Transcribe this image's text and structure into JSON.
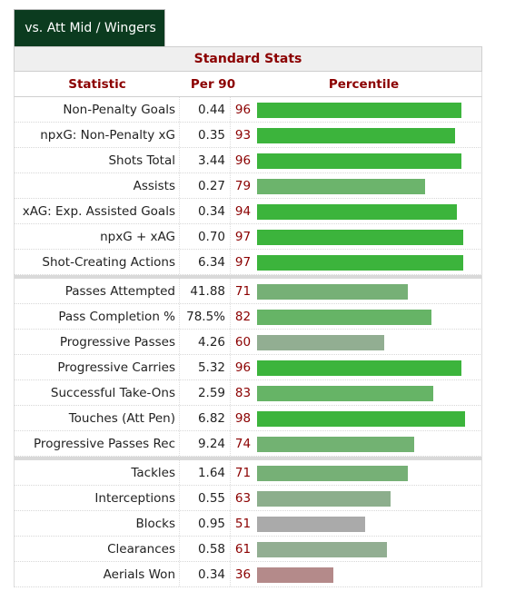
{
  "tab": {
    "label": "vs. Att Mid / Wingers"
  },
  "table": {
    "caption": "Standard Stats",
    "headers": {
      "statistic": "Statistic",
      "per90": "Per 90",
      "percentile": "Percentile"
    },
    "groups": [
      [
        {
          "stat": "Non-Penalty Goals",
          "per90": "0.44",
          "pct": "96",
          "pct_value": 96,
          "color": "#3cb43c"
        },
        {
          "stat": "npxG: Non-Penalty xG",
          "per90": "0.35",
          "pct": "93",
          "pct_value": 93,
          "color": "#3cb43c"
        },
        {
          "stat": "Shots Total",
          "per90": "3.44",
          "pct": "96",
          "pct_value": 96,
          "color": "#3cb43c"
        },
        {
          "stat": "Assists",
          "per90": "0.27",
          "pct": "79",
          "pct_value": 79,
          "color": "#6cb46c"
        },
        {
          "stat": "xAG: Exp. Assisted Goals",
          "per90": "0.34",
          "pct": "94",
          "pct_value": 94,
          "color": "#3cb43c"
        },
        {
          "stat": "npxG + xAG",
          "per90": "0.70",
          "pct": "97",
          "pct_value": 97,
          "color": "#3cb43c"
        },
        {
          "stat": "Shot-Creating Actions",
          "per90": "6.34",
          "pct": "97",
          "pct_value": 97,
          "color": "#3cb43c"
        }
      ],
      [
        {
          "stat": "Passes Attempted",
          "per90": "41.88",
          "pct": "71",
          "pct_value": 71,
          "color": "#76b076"
        },
        {
          "stat": "Pass Completion %",
          "per90": "78.5%",
          "pct": "82",
          "pct_value": 82,
          "color": "#66b466"
        },
        {
          "stat": "Progressive Passes",
          "per90": "4.26",
          "pct": "60",
          "pct_value": 60,
          "color": "#92ae92"
        },
        {
          "stat": "Progressive Carries",
          "per90": "5.32",
          "pct": "96",
          "pct_value": 96,
          "color": "#3cb43c"
        },
        {
          "stat": "Successful Take-Ons",
          "per90": "2.59",
          "pct": "83",
          "pct_value": 83,
          "color": "#66b466"
        },
        {
          "stat": "Touches (Att Pen)",
          "per90": "6.82",
          "pct": "98",
          "pct_value": 98,
          "color": "#3cb43c"
        },
        {
          "stat": "Progressive Passes Rec",
          "per90": "9.24",
          "pct": "74",
          "pct_value": 74,
          "color": "#72b272"
        }
      ],
      [
        {
          "stat": "Tackles",
          "per90": "1.64",
          "pct": "71",
          "pct_value": 71,
          "color": "#76b076"
        },
        {
          "stat": "Interceptions",
          "per90": "0.55",
          "pct": "63",
          "pct_value": 63,
          "color": "#8cae8c"
        },
        {
          "stat": "Blocks",
          "per90": "0.95",
          "pct": "51",
          "pct_value": 51,
          "color": "#aaaaaa"
        },
        {
          "stat": "Clearances",
          "per90": "0.58",
          "pct": "61",
          "pct_value": 61,
          "color": "#92ae92"
        },
        {
          "stat": "Aerials Won",
          "per90": "0.34",
          "pct": "36",
          "pct_value": 36,
          "color": "#b48a8a"
        }
      ]
    ]
  }
}
